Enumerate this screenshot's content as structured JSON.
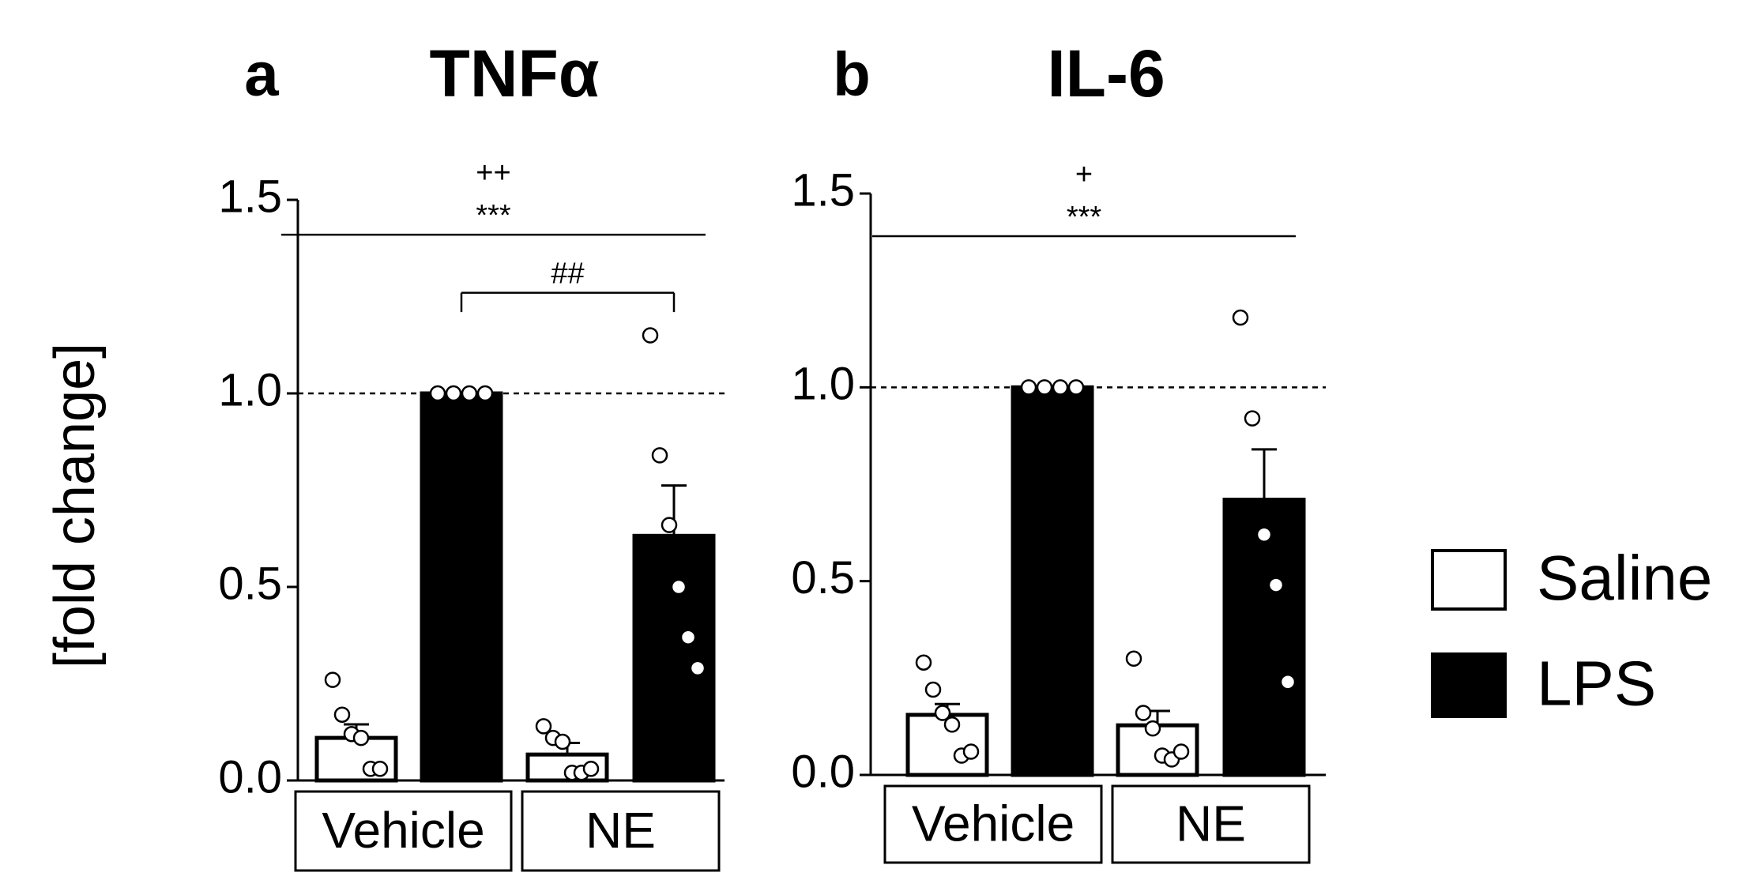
{
  "ylabel": "[fold change]",
  "chart_data": [
    {
      "type": "bar",
      "panel": "a",
      "title": "TNFα",
      "groups": [
        "Vehicle",
        "NE"
      ],
      "series": [
        {
          "name": "Saline",
          "color": "#ffffff",
          "values": [
            0.11,
            0.067
          ],
          "errors": [
            0.035,
            0.03
          ],
          "points": [
            [
              0.26,
              0.17,
              0.12,
              0.11,
              0.03,
              0.03
            ],
            [
              0.14,
              0.11,
              0.1,
              0.02,
              0.02,
              0.03
            ]
          ]
        },
        {
          "name": "LPS",
          "color": "#000000",
          "values": [
            1.0,
            0.632
          ],
          "errors": [
            0,
            0.13
          ],
          "points": [
            [
              1,
              1,
              1,
              1
            ],
            [
              1.15,
              0.84,
              0.66,
              0.5,
              0.37,
              0.29
            ]
          ]
        }
      ],
      "ylim": [
        0,
        1.5
      ],
      "yticks": [
        {
          "value": 0,
          "label": "0.0"
        },
        {
          "value": 0.5,
          "label": "0.5"
        },
        {
          "value": 1,
          "label": "1.0"
        },
        {
          "value": 1.5,
          "label": "1.5"
        }
      ],
      "refline": 1,
      "annotations": [
        "++",
        "***",
        "##"
      ]
    },
    {
      "type": "bar",
      "panel": "b",
      "title": "IL-6",
      "groups": [
        "Vehicle",
        "NE"
      ],
      "series": [
        {
          "color": "#ffffff",
          "values": [
            0.155,
            0.128
          ],
          "errors": [
            0.028,
            0.037
          ],
          "points": [
            [
              0.29,
              0.22,
              0.16,
              0.13,
              0.05,
              0.06
            ],
            [
              0.3,
              0.16,
              0.12,
              0.05,
              0.04,
              0.06
            ]
          ]
        },
        {
          "color": "#000000",
          "values": [
            1.0,
            0.71
          ],
          "errors": [
            0,
            0.13
          ],
          "points": [
            [
              1,
              1,
              1,
              1
            ],
            [
              1.18,
              0.92,
              0.62,
              0.49,
              0.24
            ]
          ]
        }
      ],
      "ylim": [
        0,
        1.5
      ],
      "yticks": [
        {
          "value": 0,
          "label": "0.0"
        },
        {
          "value": 0.5,
          "label": "0.5"
        },
        {
          "value": 1,
          "label": "1.0"
        },
        {
          "value": 1.5,
          "label": "1.5"
        }
      ],
      "refline": 1,
      "annotations": [
        "+",
        "***"
      ]
    }
  ]
}
